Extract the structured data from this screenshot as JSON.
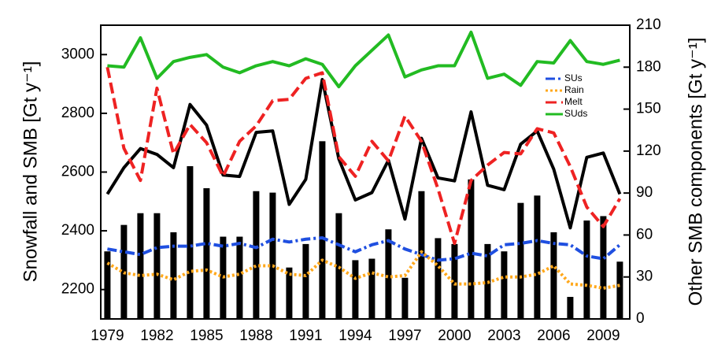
{
  "chart_data": {
    "type": "combo",
    "y_label": "Snowfall and SMB [Gt y⁻¹]",
    "y2_label": "Other SMB components [Gt y⁻¹]",
    "x": [
      1979,
      1980,
      1981,
      1982,
      1983,
      1984,
      1985,
      1986,
      1987,
      1988,
      1989,
      1990,
      1991,
      1992,
      1993,
      1994,
      1995,
      1996,
      1997,
      1998,
      1999,
      2000,
      2001,
      2002,
      2003,
      2004,
      2005,
      2006,
      2007,
      2008,
      2009,
      2010
    ],
    "xlim": [
      1978.6,
      2010.6
    ],
    "xticks": [
      1979,
      1982,
      1985,
      1988,
      1991,
      1994,
      1997,
      2000,
      2003,
      2006,
      2009
    ],
    "ylim": [
      2100,
      3100
    ],
    "yticks": [
      2200,
      2400,
      2600,
      2800,
      3000
    ],
    "y2lim": [
      0,
      210
    ],
    "y2ticks": [
      0,
      30,
      60,
      90,
      120,
      150,
      180,
      210
    ],
    "legend": "upper right",
    "series": [
      {
        "kind": "bar",
        "color": "#000000",
        "values": [
          2330,
          2420,
          2460,
          2460,
          2395,
          2620,
          2545,
          2380,
          2380,
          2535,
          2530,
          2275,
          2355,
          2705,
          2460,
          2300,
          2305,
          2405,
          2240,
          2535,
          2375,
          2355,
          2575,
          2355,
          2330,
          2495,
          2520,
          2395,
          2175,
          2435,
          2450,
          2295
        ]
      },
      {
        "kind": "line",
        "color": "#000000",
        "linestyle": "solid",
        "values": [
          2525,
          2615,
          2680,
          2660,
          2615,
          2830,
          2760,
          2590,
          2585,
          2735,
          2740,
          2490,
          2575,
          2915,
          2645,
          2505,
          2530,
          2640,
          2440,
          2715,
          2580,
          2570,
          2805,
          2555,
          2540,
          2695,
          2740,
          2610,
          2410,
          2650,
          2665,
          2525
        ]
      },
      {
        "kind": "line",
        "name": "SUs",
        "axis": "y2",
        "color": "#1f4fe0",
        "linestyle": "dashdot",
        "values": [
          50,
          48,
          46,
          51,
          52,
          52,
          54,
          52,
          54,
          51,
          57,
          55,
          57,
          58,
          53,
          48,
          53,
          56,
          50,
          46,
          42,
          43,
          47,
          45,
          53,
          54,
          56,
          54,
          53,
          45,
          43,
          53
        ]
      },
      {
        "kind": "line",
        "name": "Rain",
        "axis": "y2",
        "color": "#ffa81c",
        "linestyle": "dotted",
        "values": [
          40,
          33,
          31,
          32,
          28,
          34,
          35,
          30,
          32,
          38,
          38,
          32,
          31,
          42,
          37,
          29,
          33,
          30,
          31,
          48,
          38,
          25,
          25,
          26,
          30,
          30,
          32,
          38,
          25,
          24,
          22,
          24
        ]
      },
      {
        "kind": "line",
        "name": "Melt",
        "axis": "y2",
        "color": "#ee2222",
        "linestyle": "dashed",
        "values": [
          180,
          122,
          99,
          165,
          118,
          139,
          126,
          102,
          127,
          138,
          156,
          157,
          172,
          176,
          116,
          102,
          127,
          113,
          145,
          127,
          93,
          54,
          99,
          110,
          119,
          118,
          136,
          133,
          109,
          80,
          66,
          86
        ]
      },
      {
        "kind": "line",
        "name": "SUds",
        "axis": "y2",
        "color": "#22bb22",
        "linestyle": "solid",
        "values": [
          181,
          180,
          201,
          172,
          184,
          187,
          189,
          180,
          176,
          181,
          184,
          181,
          186,
          182,
          166,
          181,
          192,
          203,
          173,
          178,
          181,
          181,
          205,
          172,
          175,
          167,
          184,
          183,
          199,
          184,
          182,
          185
        ]
      }
    ]
  }
}
